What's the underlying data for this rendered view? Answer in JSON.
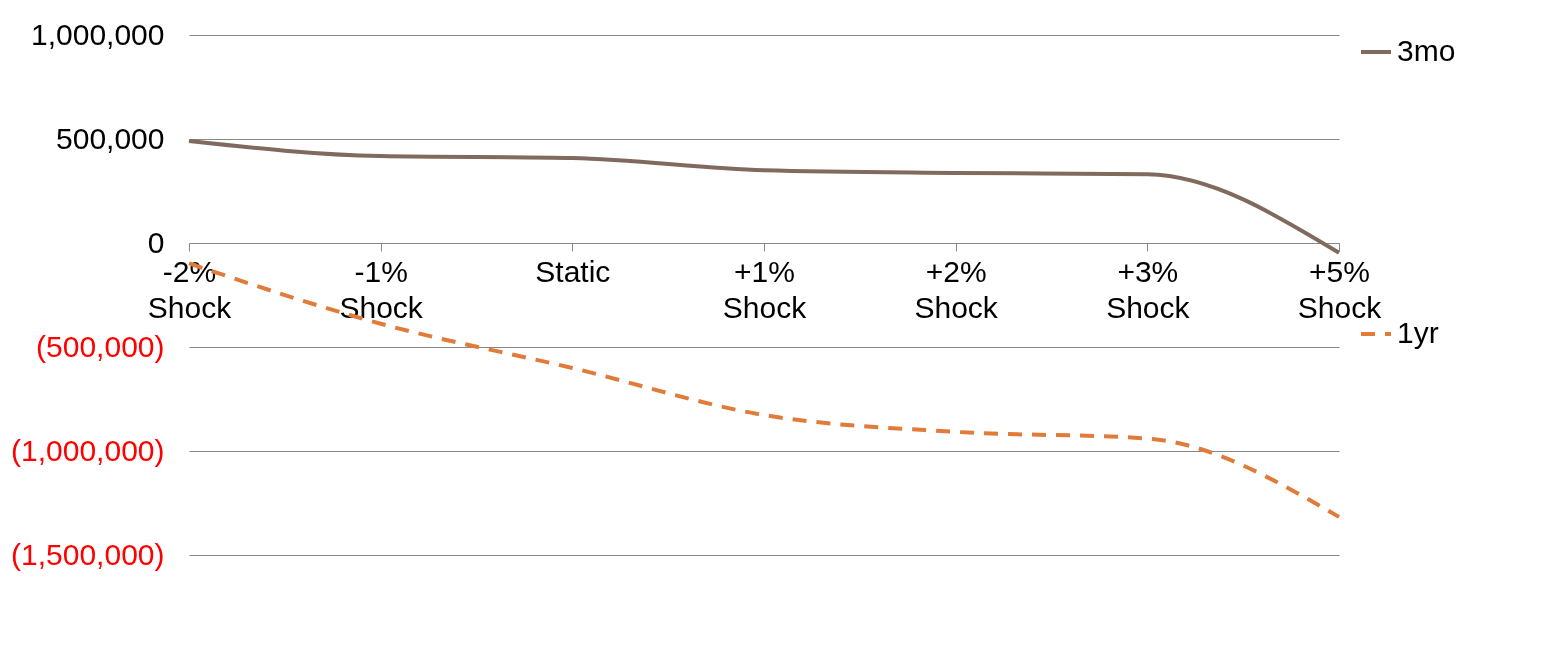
{
  "chart_data": {
    "type": "line",
    "categories": [
      "-2% Shock",
      "-1% Shock",
      "Static",
      "+1% Shock",
      "+2% Shock",
      "+3% Shock",
      "+5% Shock"
    ],
    "series": [
      {
        "name": "3mo",
        "color": "#7f6a5d",
        "values": [
          490000,
          418000,
          409000,
          350000,
          337000,
          330000,
          -47000
        ],
        "line_style": "solid"
      },
      {
        "name": "1yr",
        "color": "#e07b39",
        "values": [
          -98000,
          -388000,
          -601000,
          -827000,
          -908000,
          -940000,
          -1317000
        ],
        "line_style": "dashed"
      }
    ],
    "ylim": [
      -1500000,
      1000000
    ],
    "yticks": [
      {
        "value": -1500000,
        "label": "(1,500,000)"
      },
      {
        "value": -1000000,
        "label": "(1,000,000)"
      },
      {
        "value": -500000,
        "label": "(500,000)"
      },
      {
        "value": 0,
        "label": "0"
      },
      {
        "value": 500000,
        "label": "500,000"
      },
      {
        "value": 1000000,
        "label": "1,000,000"
      }
    ],
    "grid": "y",
    "legend": "right",
    "marker": "none"
  }
}
